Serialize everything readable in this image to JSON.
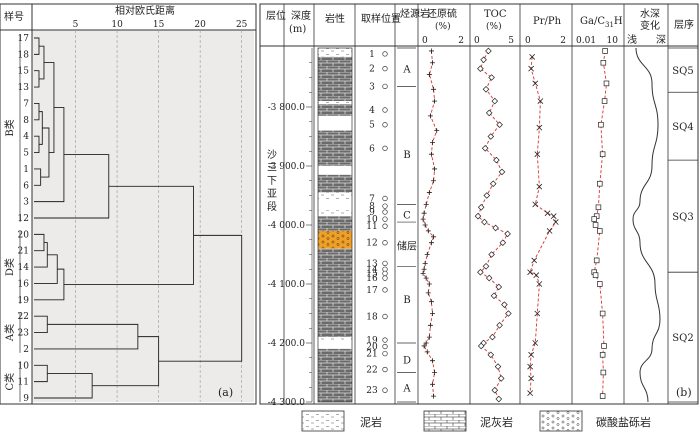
{
  "panel_a": {
    "header_sample": "样号",
    "header_distance": "相对欧氏距离",
    "ticks": [
      "5",
      "10",
      "15",
      "20",
      "25"
    ],
    "tick_values": [
      5,
      10,
      15,
      20,
      25
    ],
    "samples": [
      "17",
      "18",
      "15",
      "13",
      "7",
      "8",
      "4",
      "5",
      "1",
      "6",
      "3",
      "12",
      "20",
      "21",
      "14",
      "16",
      "19",
      "22",
      "23",
      "2",
      "10",
      "11",
      "9"
    ],
    "clusters": [
      {
        "label": "B类",
        "first": 0,
        "last": 11
      },
      {
        "label": "D类",
        "first": 12,
        "last": 16
      },
      {
        "label": "A类",
        "first": 17,
        "last": 19
      },
      {
        "label": "C类",
        "first": 20,
        "last": 22
      }
    ],
    "panel_label": "(a)"
  },
  "panel_b": {
    "headers": {
      "layer": "层位",
      "depth": "深度",
      "depth_unit": "(m)",
      "lithology": "岩性",
      "sample_pos": "取样位置",
      "source_rock": "烃源岩",
      "sulfur": "还原硫",
      "sulfur_unit": "(%)",
      "toc": "TOC",
      "toc_unit": "(%)",
      "prph": "Pr/Ph",
      "gac": "Ga/C",
      "gac_sub": "31",
      "gac_tail": "H",
      "water": "水深",
      "water2": "变化",
      "shallow": "浅",
      "deep": "深",
      "sequence": "层序"
    },
    "layer_name": "沙三下亚段",
    "depth_labels": [
      "3 800.0",
      "3 900.0",
      "4 000.0",
      "4 100.0",
      "4 200.0",
      "4 300.0"
    ],
    "depth_values": [
      3800,
      3900,
      4000,
      4100,
      4200,
      4300
    ],
    "sample_numbers": [
      "1",
      "2",
      "3",
      "4",
      "5",
      "6",
      "7",
      "8",
      "9",
      "10",
      "11",
      "12",
      "13",
      "14",
      "15",
      "16",
      "17",
      "18",
      "19",
      "20",
      "21",
      "22",
      "23"
    ],
    "source_zones": [
      "A",
      "B",
      "C",
      "储层",
      "B",
      "D",
      "A"
    ],
    "axis_sulfur": [
      "0",
      "2"
    ],
    "axis_toc": [
      "0",
      "5"
    ],
    "axis_prph": [
      "0",
      "2"
    ],
    "axis_gac": [
      "0.01",
      "10"
    ],
    "sequences": [
      "SQ5",
      "SQ4",
      "SQ3",
      "SQ2"
    ],
    "panel_label": "(b)"
  },
  "legend": [
    {
      "label": "泥岩",
      "pattern": "mudstone"
    },
    {
      "label": "泥灰岩",
      "pattern": "marl"
    },
    {
      "label": "碳酸盐砾岩",
      "pattern": "carbonate-conglomerate"
    }
  ],
  "chart_data": {
    "type": "scatter",
    "y_axis": "depth_m",
    "ylim": [
      3700,
      4300
    ],
    "series": [
      {
        "name": "还原硫",
        "xlim": [
          0,
          2
        ],
        "points": [
          [
            0.45,
            3705
          ],
          [
            0.5,
            3725
          ],
          [
            0.35,
            3745
          ],
          [
            0.55,
            3770
          ],
          [
            0.6,
            3790
          ],
          [
            0.4,
            3815
          ],
          [
            0.7,
            3840
          ],
          [
            0.5,
            3860
          ],
          [
            0.45,
            3880
          ],
          [
            0.6,
            3905
          ],
          [
            0.55,
            3925
          ],
          [
            0.35,
            3945
          ],
          [
            0.2,
            3965
          ],
          [
            0.1,
            3980
          ],
          [
            0.05,
            3990
          ],
          [
            0.15,
            4000
          ],
          [
            0.3,
            4010
          ],
          [
            0.55,
            4020
          ],
          [
            0.45,
            4030
          ],
          [
            0.25,
            4050
          ],
          [
            0.15,
            4065
          ],
          [
            0.1,
            4075
          ],
          [
            0.05,
            4082
          ],
          [
            0.2,
            4090
          ],
          [
            0.35,
            4100
          ],
          [
            0.3,
            4115
          ],
          [
            0.45,
            4130
          ],
          [
            0.5,
            4150
          ],
          [
            0.4,
            4170
          ],
          [
            0.35,
            4190
          ],
          [
            0.2,
            4200
          ],
          [
            0.1,
            4205
          ],
          [
            0.25,
            4215
          ],
          [
            0.5,
            4230
          ],
          [
            0.6,
            4250
          ],
          [
            0.5,
            4270
          ],
          [
            0.55,
            4290
          ]
        ]
      },
      {
        "name": "TOC",
        "xlim": [
          0,
          5
        ],
        "points": [
          [
            1.8,
            3705
          ],
          [
            1.2,
            3720
          ],
          [
            0.8,
            3735
          ],
          [
            2.2,
            3750
          ],
          [
            1.5,
            3770
          ],
          [
            2.6,
            3790
          ],
          [
            1.9,
            3810
          ],
          [
            3.2,
            3830
          ],
          [
            2.1,
            3850
          ],
          [
            1.4,
            3870
          ],
          [
            2.8,
            3890
          ],
          [
            3.5,
            3910
          ],
          [
            2.4,
            3930
          ],
          [
            1.6,
            3950
          ],
          [
            0.9,
            3970
          ],
          [
            0.5,
            3985
          ],
          [
            1.3,
            3995
          ],
          [
            2.7,
            4005
          ],
          [
            4.2,
            4015
          ],
          [
            3.6,
            4030
          ],
          [
            2.2,
            4050
          ],
          [
            1.5,
            4070
          ],
          [
            0.8,
            4080
          ],
          [
            1.9,
            4090
          ],
          [
            3.1,
            4105
          ],
          [
            2.5,
            4120
          ],
          [
            3.8,
            4135
          ],
          [
            4.3,
            4150
          ],
          [
            3.2,
            4170
          ],
          [
            2.3,
            4190
          ],
          [
            1.2,
            4200
          ],
          [
            0.9,
            4205
          ],
          [
            2.1,
            4220
          ],
          [
            3.0,
            4240
          ],
          [
            3.4,
            4260
          ],
          [
            2.6,
            4280
          ],
          [
            3.1,
            4295
          ]
        ]
      },
      {
        "name": "Pr/Ph",
        "xlim": [
          0,
          2
        ],
        "points": [
          [
            0.35,
            3715
          ],
          [
            0.3,
            3735
          ],
          [
            0.5,
            3760
          ],
          [
            0.75,
            3790
          ],
          [
            0.7,
            3835
          ],
          [
            0.6,
            3880
          ],
          [
            0.7,
            3935
          ],
          [
            0.5,
            3965
          ],
          [
            1.1,
            3980
          ],
          [
            1.4,
            3985
          ],
          [
            1.5,
            3995
          ],
          [
            1.2,
            4010
          ],
          [
            0.45,
            4060
          ],
          [
            0.25,
            4080
          ],
          [
            0.55,
            4085
          ],
          [
            0.7,
            4100
          ],
          [
            0.6,
            4150
          ],
          [
            0.5,
            4200
          ],
          [
            0.3,
            4220
          ],
          [
            0.25,
            4240
          ],
          [
            0.3,
            4260
          ],
          [
            0.25,
            4285
          ]
        ]
      },
      {
        "name": "Ga/C31H",
        "xlim": [
          0.01,
          10
        ],
        "xscale": "log",
        "points": [
          [
            1.2,
            3705
          ],
          [
            0.9,
            3725
          ],
          [
            1.5,
            3760
          ],
          [
            1.1,
            3790
          ],
          [
            0.6,
            3830
          ],
          [
            0.8,
            3880
          ],
          [
            0.5,
            3930
          ],
          [
            0.4,
            3970
          ],
          [
            0.3,
            3985
          ],
          [
            0.2,
            3990
          ],
          [
            0.25,
            4000
          ],
          [
            0.5,
            4010
          ],
          [
            0.3,
            4060
          ],
          [
            0.2,
            4080
          ],
          [
            0.25,
            4085
          ],
          [
            0.5,
            4100
          ],
          [
            0.8,
            4150
          ],
          [
            1.0,
            4205
          ],
          [
            0.8,
            4220
          ],
          [
            0.9,
            4250
          ],
          [
            0.8,
            4290
          ]
        ]
      }
    ]
  }
}
